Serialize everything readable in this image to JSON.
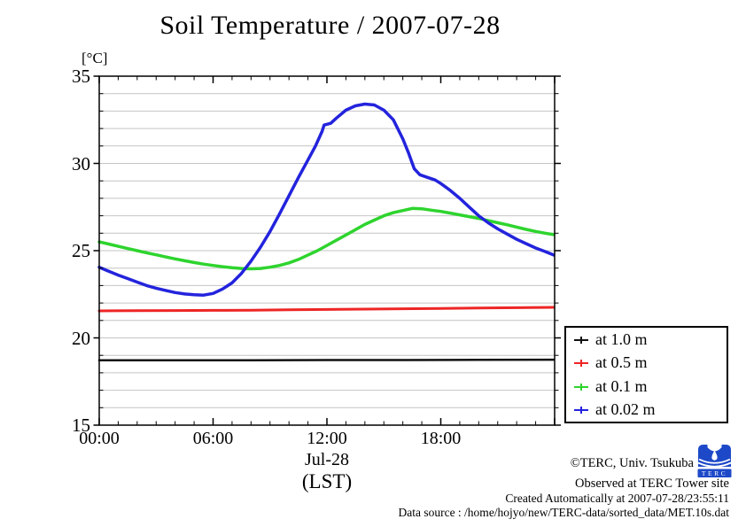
{
  "title": "Soil Temperature / 2007-07-28",
  "axes": {
    "y_unit": "[°C]",
    "y_ticks": [
      35,
      30,
      25,
      20,
      15
    ],
    "x_ticks": [
      {
        "hour": 0,
        "label": "00:00"
      },
      {
        "hour": 6,
        "label": "06:00"
      },
      {
        "hour": 12,
        "label": "12:00"
      },
      {
        "hour": 18,
        "label": "18:00"
      }
    ],
    "date_label": "Jul-28",
    "lst_label": "(LST)"
  },
  "legend": [
    {
      "label": "at 1.0 m",
      "color": "#111111"
    },
    {
      "label": "at 0.5 m",
      "color": "#ee2525"
    },
    {
      "label": "at 0.1 m",
      "color": "#2ed42e"
    },
    {
      "label": "at 0.02 m",
      "color": "#2323dd"
    }
  ],
  "footer": {
    "copyright": "©TERC, Univ. Tsukuba",
    "observed": "Observed at TERC Tower site",
    "created": "Created Automatically at 2007-07-28/23:55:11",
    "datasource": "Data source : /home/hojyo/new/TERC-data/sorted_data/MET.10s.dat",
    "logo_text": "TERC",
    "logo_color": "#1d49c8"
  },
  "chart_data": {
    "type": "line",
    "title": "Soil Temperature / 2007-07-28",
    "xlabel": "Jul-28 (LST)",
    "ylabel": "[°C]",
    "x_unit": "hours LST, 00:00-24:00",
    "xlim_hours": [
      0,
      24
    ],
    "ylim": [
      15,
      35
    ],
    "grid": "horizontal gray lines every 1 °C",
    "grid_color": "#c4c4c4",
    "legend_position": "boxed, outside lower right of plot",
    "series": [
      {
        "name": "at 1.0 m",
        "color": "#111111",
        "width": 2.5,
        "points": [
          [
            0,
            18.72
          ],
          [
            4,
            18.72
          ],
          [
            8,
            18.72
          ],
          [
            12,
            18.73
          ],
          [
            16,
            18.73
          ],
          [
            20,
            18.74
          ],
          [
            23.95,
            18.75
          ]
        ]
      },
      {
        "name": "at 0.5 m",
        "color": "#ee2525",
        "width": 3,
        "points": [
          [
            0,
            21.55
          ],
          [
            2,
            21.56
          ],
          [
            4,
            21.57
          ],
          [
            6,
            21.58
          ],
          [
            8,
            21.59
          ],
          [
            10,
            21.61
          ],
          [
            12,
            21.63
          ],
          [
            14,
            21.65
          ],
          [
            16,
            21.67
          ],
          [
            18,
            21.69
          ],
          [
            20,
            21.71
          ],
          [
            22,
            21.73
          ],
          [
            23.95,
            21.75
          ]
        ]
      },
      {
        "name": "at 0.1 m",
        "color": "#2ed42e",
        "width": 3.5,
        "points": [
          [
            0,
            25.5
          ],
          [
            0.5,
            25.38
          ],
          [
            1,
            25.25
          ],
          [
            1.5,
            25.12
          ],
          [
            2,
            25.0
          ],
          [
            2.5,
            24.88
          ],
          [
            3,
            24.76
          ],
          [
            3.5,
            24.64
          ],
          [
            4,
            24.53
          ],
          [
            4.5,
            24.42
          ],
          [
            5,
            24.32
          ],
          [
            5.5,
            24.23
          ],
          [
            6,
            24.15
          ],
          [
            6.5,
            24.08
          ],
          [
            7,
            24.02
          ],
          [
            7.5,
            23.98
          ],
          [
            8,
            23.96
          ],
          [
            8.5,
            23.98
          ],
          [
            9,
            24.05
          ],
          [
            9.5,
            24.15
          ],
          [
            10,
            24.3
          ],
          [
            10.5,
            24.5
          ],
          [
            11,
            24.75
          ],
          [
            11.5,
            25.0
          ],
          [
            12,
            25.3
          ],
          [
            12.5,
            25.6
          ],
          [
            13,
            25.9
          ],
          [
            13.5,
            26.2
          ],
          [
            14,
            26.5
          ],
          [
            14.5,
            26.75
          ],
          [
            15,
            27.0
          ],
          [
            15.5,
            27.18
          ],
          [
            16,
            27.3
          ],
          [
            16.5,
            27.42
          ],
          [
            17,
            27.4
          ],
          [
            17.5,
            27.32
          ],
          [
            18,
            27.25
          ],
          [
            18.5,
            27.15
          ],
          [
            19,
            27.05
          ],
          [
            19.5,
            26.95
          ],
          [
            20,
            26.85
          ],
          [
            20.5,
            26.72
          ],
          [
            21,
            26.6
          ],
          [
            21.5,
            26.48
          ],
          [
            22,
            26.35
          ],
          [
            22.5,
            26.22
          ],
          [
            23,
            26.1
          ],
          [
            23.5,
            26.0
          ],
          [
            23.95,
            25.92
          ]
        ]
      },
      {
        "name": "at 0.02 m",
        "color": "#2323dd",
        "width": 3.5,
        "points": [
          [
            0,
            24.05
          ],
          [
            0.5,
            23.82
          ],
          [
            1,
            23.6
          ],
          [
            1.5,
            23.4
          ],
          [
            2,
            23.2
          ],
          [
            2.5,
            23.0
          ],
          [
            3,
            22.85
          ],
          [
            3.5,
            22.72
          ],
          [
            4,
            22.6
          ],
          [
            4.5,
            22.52
          ],
          [
            5,
            22.47
          ],
          [
            5.5,
            22.45
          ],
          [
            6,
            22.55
          ],
          [
            6.5,
            22.8
          ],
          [
            7,
            23.15
          ],
          [
            7.5,
            23.7
          ],
          [
            8,
            24.4
          ],
          [
            8.5,
            25.2
          ],
          [
            9,
            26.1
          ],
          [
            9.5,
            27.1
          ],
          [
            10,
            28.15
          ],
          [
            10.5,
            29.2
          ],
          [
            11,
            30.2
          ],
          [
            11.4,
            31.0
          ],
          [
            11.75,
            31.85
          ],
          [
            11.85,
            32.2
          ],
          [
            12.2,
            32.3
          ],
          [
            12.5,
            32.6
          ],
          [
            13,
            33.05
          ],
          [
            13.5,
            33.3
          ],
          [
            14,
            33.4
          ],
          [
            14.5,
            33.35
          ],
          [
            15,
            33.05
          ],
          [
            15.5,
            32.5
          ],
          [
            16,
            31.4
          ],
          [
            16.3,
            30.6
          ],
          [
            16.6,
            29.7
          ],
          [
            16.9,
            29.35
          ],
          [
            17.3,
            29.2
          ],
          [
            17.7,
            29.05
          ],
          [
            18,
            28.85
          ],
          [
            18.5,
            28.45
          ],
          [
            19,
            28.0
          ],
          [
            19.5,
            27.5
          ],
          [
            20,
            27.0
          ],
          [
            20.5,
            26.6
          ],
          [
            21,
            26.25
          ],
          [
            21.5,
            25.95
          ],
          [
            22,
            25.65
          ],
          [
            22.5,
            25.4
          ],
          [
            23,
            25.15
          ],
          [
            23.5,
            24.95
          ],
          [
            23.95,
            24.75
          ]
        ]
      }
    ]
  }
}
